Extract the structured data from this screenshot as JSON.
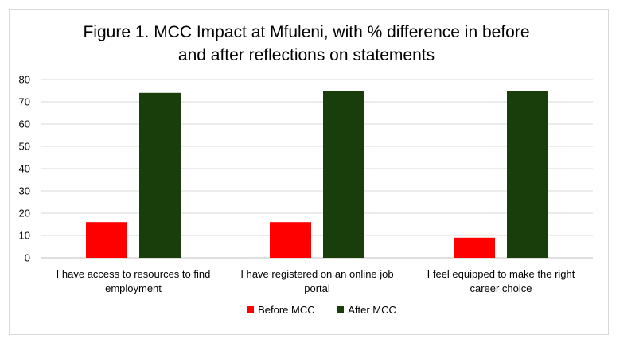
{
  "chart_data": {
    "type": "bar",
    "title_line1": "Figure 1.  MCC Impact at Mfuleni, with % difference in before",
    "title_line2": "and after reflections on  statements",
    "categories": [
      [
        "I have access to resources to find",
        "employment"
      ],
      [
        "I have registered on an online job",
        "portal"
      ],
      [
        "I feel equipped to make the right",
        "career choice"
      ]
    ],
    "series": [
      {
        "name": "Before MCC",
        "color": "#ff0000",
        "values": [
          16,
          16,
          9
        ]
      },
      {
        "name": "After MCC",
        "color": "#1a3d0c",
        "values": [
          74,
          75,
          75
        ]
      }
    ],
    "ylim": [
      0,
      80
    ],
    "yticks": [
      "0",
      "10",
      "20",
      "30",
      "40",
      "50",
      "60",
      "70",
      "80"
    ],
    "grid": true,
    "legend_position": "bottom"
  }
}
